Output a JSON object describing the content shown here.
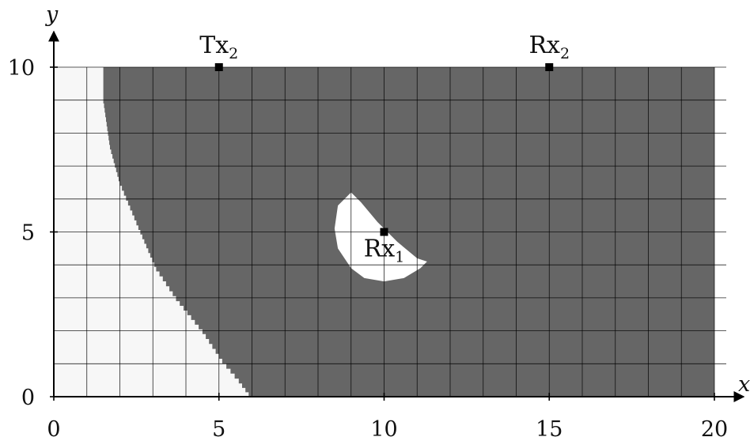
{
  "chart_data": {
    "type": "heatmap",
    "xlabel": "x",
    "ylabel": "y",
    "xlim": [
      0,
      20
    ],
    "ylim": [
      0,
      10
    ],
    "x_ticks": [
      "0",
      "5",
      "10",
      "15",
      "20"
    ],
    "y_ticks": [
      "0",
      "5",
      "10"
    ],
    "grid": true,
    "grid_step": 1,
    "colors": {
      "dark_region": "#666666",
      "light_region": "#f7f7f7",
      "hole_region": "#ffffff",
      "grid": "#000000",
      "marker": "#000000"
    },
    "light_region_boundary": [
      [
        1.5,
        10
      ],
      [
        1.5,
        8.9
      ],
      [
        1.7,
        7.5
      ],
      [
        2.0,
        6.4
      ],
      [
        2.5,
        5.2
      ],
      [
        3.1,
        3.8
      ],
      [
        3.7,
        2.9
      ],
      [
        4.5,
        1.9
      ],
      [
        5.1,
        1.0
      ],
      [
        5.6,
        0.4
      ],
      [
        5.9,
        0
      ]
    ],
    "hole_region_boundary": [
      [
        9.0,
        6.2
      ],
      [
        9.3,
        5.9
      ],
      [
        9.8,
        5.3
      ],
      [
        10.4,
        4.7
      ],
      [
        11.0,
        4.2
      ],
      [
        11.3,
        4.1
      ],
      [
        11.1,
        3.9
      ],
      [
        10.6,
        3.6
      ],
      [
        10.0,
        3.5
      ],
      [
        9.4,
        3.6
      ],
      [
        9.0,
        3.9
      ],
      [
        8.6,
        4.5
      ],
      [
        8.5,
        5.1
      ],
      [
        8.6,
        5.8
      ]
    ],
    "points": [
      {
        "name": "Tx",
        "sub": "2",
        "x": 5,
        "y": 10,
        "label_pos": "above"
      },
      {
        "name": "Rx",
        "sub": "2",
        "x": 15,
        "y": 10,
        "label_pos": "above"
      },
      {
        "name": "Rx",
        "sub": "1",
        "x": 10,
        "y": 5,
        "label_pos": "below"
      }
    ]
  }
}
